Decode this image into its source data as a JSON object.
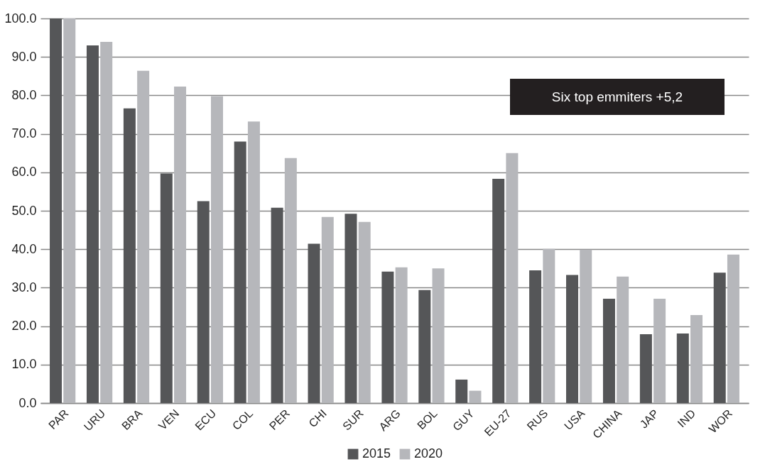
{
  "chart_data": {
    "type": "bar",
    "categories": [
      "PAR",
      "URU",
      "BRA",
      "VEN",
      "ECU",
      "COL",
      "PER",
      "CHI",
      "SUR",
      "ARG",
      "BOL",
      "GUY",
      "EU-27",
      "RUS",
      "USA",
      "CHINA",
      "JAP",
      "IND",
      "WOR"
    ],
    "series": [
      {
        "name": "2015",
        "color": "#555658",
        "values": [
          100,
          93.0,
          76.6,
          59.7,
          52.5,
          68.0,
          50.8,
          41.4,
          49.2,
          34.2,
          29.4,
          6.1,
          58.3,
          34.5,
          33.3,
          27.1,
          17.9,
          18.1,
          33.9
        ]
      },
      {
        "name": "2020",
        "color": "#b6b7bb",
        "values": [
          100,
          93.9,
          86.4,
          82.3,
          79.8,
          73.2,
          63.7,
          48.4,
          47.1,
          35.3,
          35.0,
          3.2,
          65.0,
          40.1,
          39.9,
          32.9,
          27.1,
          22.9,
          38.6
        ]
      }
    ],
    "ylim": [
      0,
      100
    ],
    "yticks": [
      {
        "value": 0,
        "label": "0.0"
      },
      {
        "value": 10,
        "label": "10.0"
      },
      {
        "value": 20,
        "label": "20.0"
      },
      {
        "value": 30,
        "label": "30.0"
      },
      {
        "value": 40,
        "label": "40.0"
      },
      {
        "value": 50,
        "label": "50.0"
      },
      {
        "value": 60,
        "label": "60.0"
      },
      {
        "value": 70,
        "label": "70.0"
      },
      {
        "value": 80,
        "label": "80.0"
      },
      {
        "value": 90,
        "label": "90.0"
      },
      {
        "value": 100,
        "label": "100.0"
      }
    ],
    "annotations": [
      "Six top emmiters +5,2"
    ],
    "grid": "y",
    "legend": "bottom"
  }
}
